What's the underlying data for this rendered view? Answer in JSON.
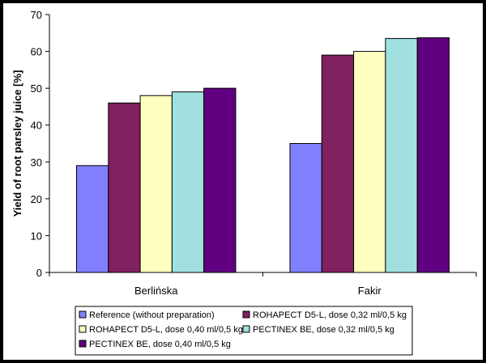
{
  "chart_data": {
    "type": "bar",
    "title": "",
    "xlabel": "",
    "ylabel": "Yield of root parsley juice [%]",
    "ylim": [
      0,
      70
    ],
    "yticks": [
      0,
      10,
      20,
      30,
      40,
      50,
      60,
      70
    ],
    "grid": false,
    "legend_position": "bottom",
    "categories": [
      "Berlińska",
      "Fakir"
    ],
    "series": [
      {
        "name": "Reference (without preparation)",
        "color": "#8080ff",
        "values": [
          29,
          35
        ]
      },
      {
        "name": "ROHAPECT D5-L, dose 0,32 ml/0,5 kg",
        "color": "#802060",
        "values": [
          46,
          59
        ]
      },
      {
        "name": "ROHAPECT D5-L, dose 0,40 ml/0,5 kg",
        "color": "#ffffc0",
        "values": [
          48,
          60
        ]
      },
      {
        "name": "PECTINEX BE, dose 0,32 ml/0,5 kg",
        "color": "#a0e0e0",
        "values": [
          49,
          63.5
        ]
      },
      {
        "name": "PECTINEX BE, dose 0,40 ml/0,5 kg",
        "color": "#600080",
        "values": [
          50,
          63.7
        ]
      }
    ]
  }
}
